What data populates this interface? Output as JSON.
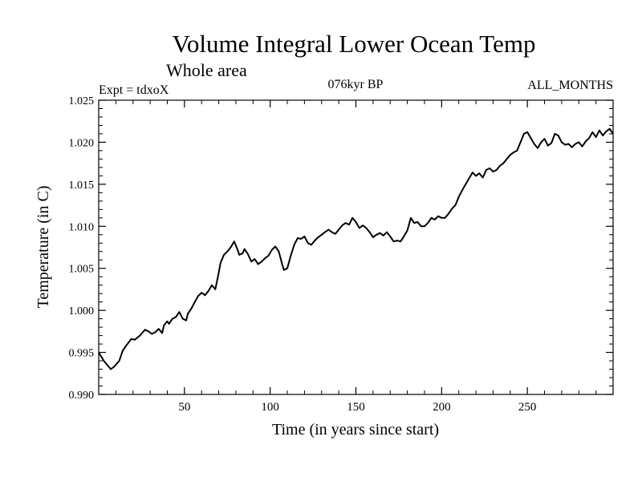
{
  "chart_data": {
    "type": "line",
    "title": "Volume Integral Lower Ocean Temp",
    "subtitle": "Whole area",
    "expt_label": "Expt = tdxoX",
    "period_label": "076kyr BP",
    "months_label": "ALL_MONTHS",
    "xlabel": "Time (in years since start)",
    "ylabel": "Temperature (in C)",
    "xlim": [
      0,
      300
    ],
    "ylim": [
      0.99,
      1.025
    ],
    "x_ticks": [
      {
        "value": 50,
        "label": "50"
      },
      {
        "value": 100,
        "label": "100"
      },
      {
        "value": 150,
        "label": "150"
      },
      {
        "value": 200,
        "label": "200"
      },
      {
        "value": 250,
        "label": "250"
      }
    ],
    "y_ticks": [
      {
        "value": 0.99,
        "label": "0.990"
      },
      {
        "value": 0.995,
        "label": "0.995"
      },
      {
        "value": 1.0,
        "label": "1.000"
      },
      {
        "value": 1.005,
        "label": "1.005"
      },
      {
        "value": 1.01,
        "label": "1.010"
      },
      {
        "value": 1.015,
        "label": "1.015"
      },
      {
        "value": 1.02,
        "label": "1.020"
      },
      {
        "value": 1.025,
        "label": "1.025"
      }
    ],
    "grid": false,
    "line_color": "#000000",
    "series": [
      {
        "x": [
          0,
          3,
          5,
          7,
          9,
          12,
          14,
          16,
          19,
          21,
          24,
          27,
          29,
          31,
          33,
          35,
          37,
          38,
          40,
          41,
          43,
          45,
          47,
          49,
          51,
          52,
          54,
          56,
          58,
          60,
          62,
          64,
          66,
          68,
          70,
          71,
          73,
          75,
          77,
          79,
          81,
          82,
          84,
          85,
          87,
          89,
          91,
          93,
          95,
          97,
          99,
          101,
          103,
          105,
          107,
          108,
          110,
          112,
          114,
          116,
          118,
          120,
          122,
          124,
          126,
          128,
          130,
          132,
          134,
          136,
          138,
          140,
          142,
          144,
          146,
          148,
          150,
          152,
          154,
          156,
          158,
          160,
          162,
          164,
          166,
          168,
          170,
          172,
          174,
          176,
          178,
          180,
          182,
          184,
          186,
          188,
          190,
          192,
          194,
          196,
          198,
          200,
          202,
          204,
          206,
          208,
          210,
          212,
          214,
          216,
          218,
          220,
          222,
          224,
          226,
          228,
          230,
          232,
          234,
          236,
          238,
          240,
          242,
          244,
          246,
          248,
          250,
          252,
          254,
          256,
          258,
          260,
          262,
          264,
          266,
          268,
          270,
          272,
          274,
          276,
          278,
          280,
          282,
          284,
          286,
          288,
          290,
          292,
          294,
          296,
          298,
          300
        ],
        "values": [
          0.995,
          0.994,
          0.9935,
          0.993,
          0.9933,
          0.994,
          0.9952,
          0.9958,
          0.9966,
          0.9965,
          0.997,
          0.9977,
          0.9975,
          0.9972,
          0.9974,
          0.9978,
          0.9973,
          0.9982,
          0.9987,
          0.9984,
          0.999,
          0.9992,
          0.9998,
          0.999,
          0.9988,
          0.9996,
          1.0002,
          1.001,
          1.0017,
          1.0021,
          1.0018,
          1.0023,
          1.003,
          1.0025,
          1.0045,
          1.0056,
          1.0066,
          1.007,
          1.0075,
          1.0082,
          1.0072,
          1.0066,
          1.0068,
          1.0073,
          1.0067,
          1.0058,
          1.0061,
          1.0055,
          1.0058,
          1.0062,
          1.0065,
          1.0072,
          1.0076,
          1.007,
          1.0055,
          1.0048,
          1.005,
          1.0065,
          1.0078,
          1.0086,
          1.0085,
          1.0088,
          1.008,
          1.0078,
          1.0083,
          1.0087,
          1.009,
          1.0093,
          1.0096,
          1.0093,
          1.0091,
          1.0096,
          1.0101,
          1.0104,
          1.0102,
          1.011,
          1.0105,
          1.0098,
          1.0101,
          1.0098,
          1.0093,
          1.0087,
          1.009,
          1.0092,
          1.0089,
          1.0093,
          1.0088,
          1.0082,
          1.0083,
          1.0082,
          1.0088,
          1.0095,
          1.011,
          1.0104,
          1.0105,
          1.01,
          1.01,
          1.0104,
          1.011,
          1.0108,
          1.0112,
          1.011,
          1.011,
          1.0115,
          1.0121,
          1.0125,
          1.0135,
          1.0143,
          1.015,
          1.0157,
          1.0164,
          1.016,
          1.0163,
          1.0158,
          1.0167,
          1.0169,
          1.0165,
          1.0167,
          1.0172,
          1.0175,
          1.018,
          1.0185,
          1.0188,
          1.019,
          1.02,
          1.021,
          1.0212,
          1.0205,
          1.0198,
          1.0193,
          1.02,
          1.0204,
          1.0196,
          1.0199,
          1.021,
          1.0208,
          1.02,
          1.0197,
          1.0198,
          1.0194,
          1.0198,
          1.02,
          1.0195,
          1.0201,
          1.0205,
          1.0212,
          1.0206,
          1.0214,
          1.0208,
          1.0213,
          1.0216,
          1.021
        ]
      }
    ]
  }
}
